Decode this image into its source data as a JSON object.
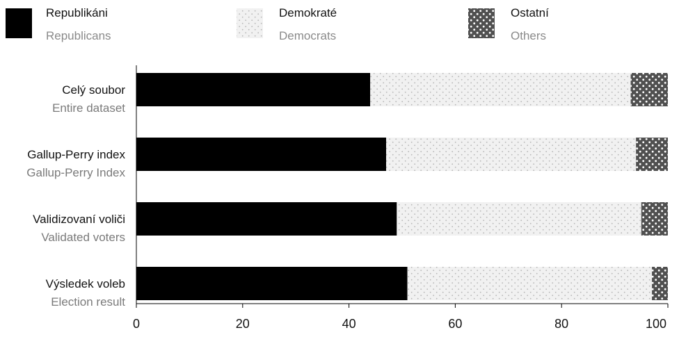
{
  "chart_data": {
    "type": "bar",
    "orientation": "horizontal",
    "stacked": true,
    "categories": [
      {
        "primary": "Celý soubor",
        "secondary": "Entire dataset"
      },
      {
        "primary": "Gallup-Perry index",
        "secondary": "Gallup-Perry Index"
      },
      {
        "primary": "Validizovaní voliči",
        "secondary": "Validated voters"
      },
      {
        "primary": "Výsledek voleb",
        "secondary": "Election result"
      }
    ],
    "series": [
      {
        "key": "republicans",
        "name": "Republikáni",
        "name_secondary": "Republicans",
        "color": "#000000",
        "pattern": "solid",
        "values": [
          44,
          47,
          49,
          51
        ]
      },
      {
        "key": "democrats",
        "name": "Demokraté",
        "name_secondary": "Democrats",
        "color": "#f0f0f0",
        "pattern": "light-dots",
        "values": [
          49,
          47,
          46,
          46
        ]
      },
      {
        "key": "others",
        "name": "Ostatní",
        "name_secondary": "Others",
        "color": "#555555",
        "pattern": "white-dots",
        "values": [
          7,
          6,
          5,
          3
        ]
      }
    ],
    "xlim": [
      0,
      100
    ],
    "xticks": [
      0,
      20,
      40,
      60,
      80,
      100
    ],
    "grid": false,
    "legend_position": "top"
  }
}
